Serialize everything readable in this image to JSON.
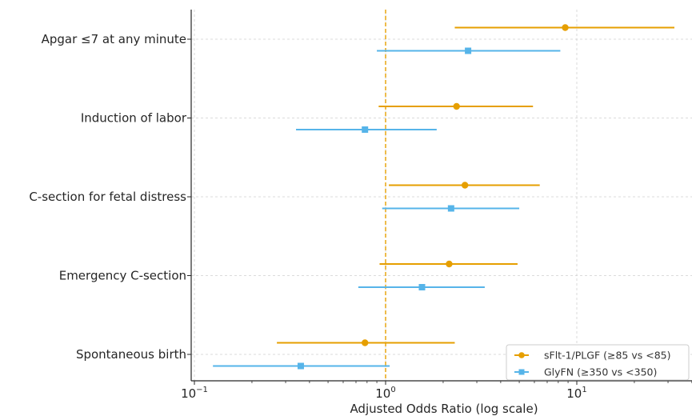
{
  "chart_data": {
    "type": "forest",
    "xlabel": "Adjusted Odds Ratio (log scale)",
    "xscale": "log",
    "xlim": [
      0.095,
      40
    ],
    "x_ticks": [
      {
        "value": 0.1,
        "base": "10",
        "exp": "−1"
      },
      {
        "value": 1,
        "base": "10",
        "exp": "0"
      },
      {
        "value": 10,
        "base": "10",
        "exp": "1"
      }
    ],
    "reference_line": 1,
    "grid": true,
    "legend_position": "lower right",
    "categories": [
      "Apgar ≤7 at any minute",
      "Induction of labor",
      "C-section for fetal distress",
      "Emergency C-section",
      "Spontaneous birth"
    ],
    "series": [
      {
        "name": "sFlt-1/PLGF (≥85 vs <85)",
        "color": "#E69F00",
        "marker": "circle",
        "points": [
          {
            "or": 8.7,
            "lo": 2.3,
            "hi": 34
          },
          {
            "or": 2.35,
            "lo": 0.92,
            "hi": 5.9
          },
          {
            "or": 2.6,
            "lo": 1.04,
            "hi": 6.4
          },
          {
            "or": 2.15,
            "lo": 0.93,
            "hi": 4.9
          },
          {
            "or": 0.78,
            "lo": 0.27,
            "hi": 2.3
          }
        ]
      },
      {
        "name": "GlyFN (≥350 vs <350)",
        "color": "#56B4E9",
        "marker": "square",
        "points": [
          {
            "or": 2.7,
            "lo": 0.9,
            "hi": 8.2
          },
          {
            "or": 0.78,
            "lo": 0.34,
            "hi": 1.85
          },
          {
            "or": 2.2,
            "lo": 0.96,
            "hi": 5.0
          },
          {
            "or": 1.55,
            "lo": 0.72,
            "hi": 3.3
          },
          {
            "or": 0.36,
            "lo": 0.125,
            "hi": 1.05
          }
        ]
      }
    ]
  }
}
